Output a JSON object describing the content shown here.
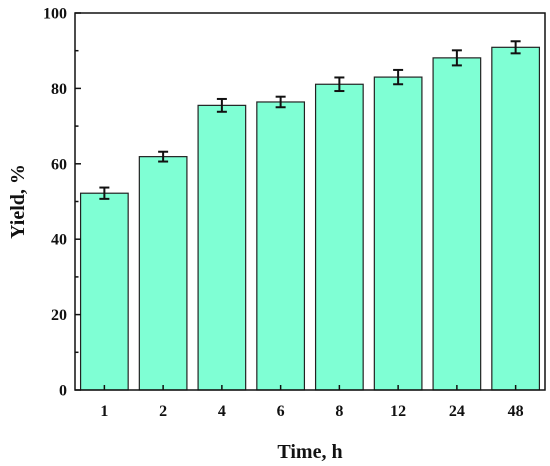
{
  "chart_data": {
    "type": "bar",
    "categories": [
      "1",
      "2",
      "4",
      "6",
      "8",
      "12",
      "24",
      "48"
    ],
    "values": [
      52.2,
      61.9,
      75.5,
      76.4,
      81.1,
      83.0,
      88.1,
      90.9
    ],
    "errors": [
      1.5,
      1.3,
      1.7,
      1.4,
      1.8,
      1.9,
      2.0,
      1.6
    ],
    "xlabel": "Time, h",
    "ylabel": "Yield, %",
    "ylim": [
      0,
      100
    ],
    "yticks": [
      0,
      20,
      40,
      60,
      80,
      100
    ],
    "grid": false,
    "bar_color": "#7fffd4",
    "bar_edge_color": "#222222"
  }
}
